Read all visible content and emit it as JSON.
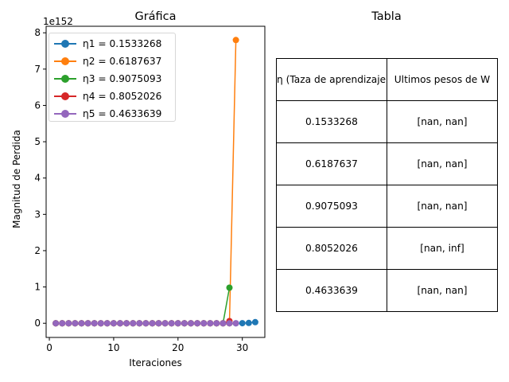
{
  "chart_data": {
    "type": "line",
    "title": "Gráfica",
    "xlabel": "Iteraciones",
    "ylabel": "Magnitud de Perdida",
    "y_multiplier_label": "1e152",
    "xlim": [
      -0.5,
      33.5
    ],
    "ylim": [
      -0.39,
      8.18
    ],
    "x_ticks": [
      0,
      10,
      20,
      30
    ],
    "y_ticks": [
      0,
      1,
      2,
      3,
      4,
      5,
      6,
      7,
      8
    ],
    "grid": false,
    "legend_position": "upper-left",
    "series": [
      {
        "name": "η1 = 0.1533268",
        "color": "#1f77b4",
        "x": [
          1,
          2,
          3,
          4,
          5,
          6,
          7,
          8,
          9,
          10,
          11,
          12,
          13,
          14,
          15,
          16,
          17,
          18,
          19,
          20,
          21,
          22,
          23,
          24,
          25,
          26,
          27,
          28,
          29,
          30,
          31,
          32
        ],
        "y": [
          0,
          0,
          0,
          0,
          0,
          0,
          0,
          0,
          0,
          0,
          0,
          0,
          0,
          0,
          0,
          0,
          0,
          0,
          0,
          0,
          0,
          0,
          0,
          0,
          0,
          0,
          0,
          0,
          0,
          0.002,
          0.008,
          0.03
        ]
      },
      {
        "name": "η2 = 0.6187637",
        "color": "#ff7f0e",
        "x": [
          1,
          2,
          3,
          4,
          5,
          6,
          7,
          8,
          9,
          10,
          11,
          12,
          13,
          14,
          15,
          16,
          17,
          18,
          19,
          20,
          21,
          22,
          23,
          24,
          25,
          26,
          27,
          28,
          29
        ],
        "y": [
          0,
          0,
          0,
          0,
          0,
          0,
          0,
          0,
          0,
          0,
          0,
          0,
          0,
          0,
          0,
          0,
          0,
          0,
          0,
          0,
          0,
          0,
          0,
          0,
          0,
          0,
          0,
          0,
          7.8
        ]
      },
      {
        "name": "η3 = 0.9075093",
        "color": "#2ca02c",
        "x": [
          1,
          2,
          3,
          4,
          5,
          6,
          7,
          8,
          9,
          10,
          11,
          12,
          13,
          14,
          15,
          16,
          17,
          18,
          19,
          20,
          21,
          22,
          23,
          24,
          25,
          26,
          27,
          28
        ],
        "y": [
          0,
          0,
          0,
          0,
          0,
          0,
          0,
          0,
          0,
          0,
          0,
          0,
          0,
          0,
          0,
          0,
          0,
          0,
          0,
          0,
          0,
          0,
          0,
          0,
          0,
          0,
          0,
          0.98
        ]
      },
      {
        "name": "η4 = 0.8052026",
        "color": "#d62728",
        "x": [
          1,
          2,
          3,
          4,
          5,
          6,
          7,
          8,
          9,
          10,
          11,
          12,
          13,
          14,
          15,
          16,
          17,
          18,
          19,
          20,
          21,
          22,
          23,
          24,
          25,
          26,
          27,
          28
        ],
        "y": [
          0,
          0,
          0,
          0,
          0,
          0,
          0,
          0,
          0,
          0,
          0,
          0,
          0,
          0,
          0,
          0,
          0,
          0,
          0,
          0,
          0,
          0,
          0,
          0,
          0,
          0,
          0,
          0.06
        ]
      },
      {
        "name": "η5 = 0.4633639",
        "color": "#9467bd",
        "x": [
          1,
          2,
          3,
          4,
          5,
          6,
          7,
          8,
          9,
          10,
          11,
          12,
          13,
          14,
          15,
          16,
          17,
          18,
          19,
          20,
          21,
          22,
          23,
          24,
          25,
          26,
          27,
          28,
          29
        ],
        "y": [
          0,
          0,
          0,
          0,
          0,
          0,
          0,
          0,
          0,
          0,
          0,
          0,
          0,
          0,
          0,
          0,
          0,
          0,
          0,
          0,
          0,
          0,
          0,
          0,
          0,
          0,
          0,
          0,
          0
        ]
      }
    ]
  },
  "table": {
    "title": "Tabla",
    "headers": [
      "η (Taza de aprendizaje)",
      "Ultimos pesos de W"
    ],
    "rows": [
      [
        "0.1533268",
        "[nan, nan]"
      ],
      [
        "0.6187637",
        "[nan, nan]"
      ],
      [
        "0.9075093",
        "[nan, nan]"
      ],
      [
        "0.8052026",
        "[nan, inf]"
      ],
      [
        "0.4633639",
        "[nan, nan]"
      ]
    ]
  }
}
